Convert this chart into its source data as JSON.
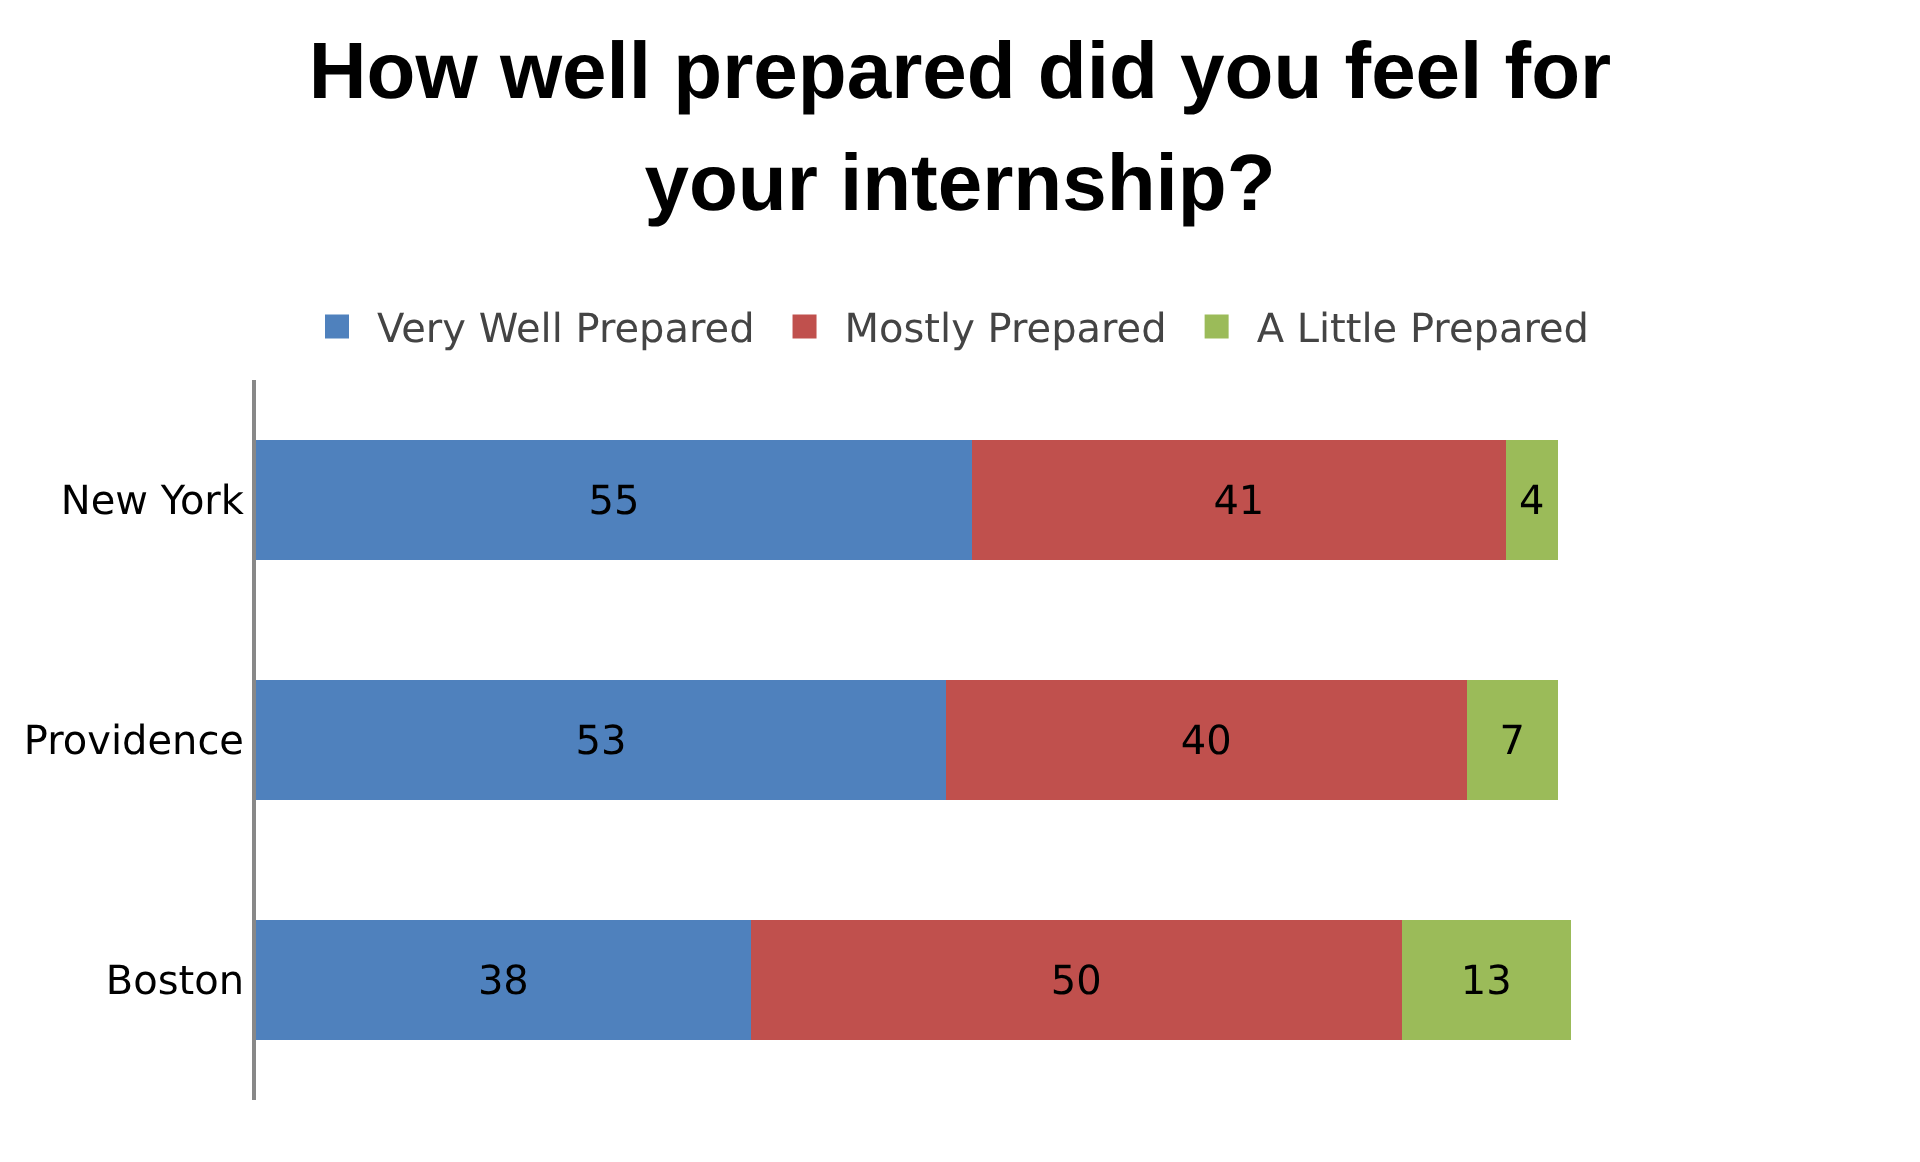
{
  "chart_data": {
    "type": "bar",
    "orientation": "horizontal",
    "stacked": true,
    "title": "How well prepared did you feel for your internship?",
    "categories": [
      "New York",
      "Providence",
      "Boston"
    ],
    "series": [
      {
        "name": "Very Well Prepared",
        "color": "#4f81bd",
        "values": [
          55,
          53,
          38
        ]
      },
      {
        "name": "Mostly Prepared",
        "color": "#c0504d",
        "values": [
          41,
          40,
          50
        ]
      },
      {
        "name": "A Little Prepared",
        "color": "#9bbb59",
        "values": [
          4,
          7,
          13
        ]
      }
    ],
    "data_labels": true,
    "legend": "top",
    "grid": false
  }
}
